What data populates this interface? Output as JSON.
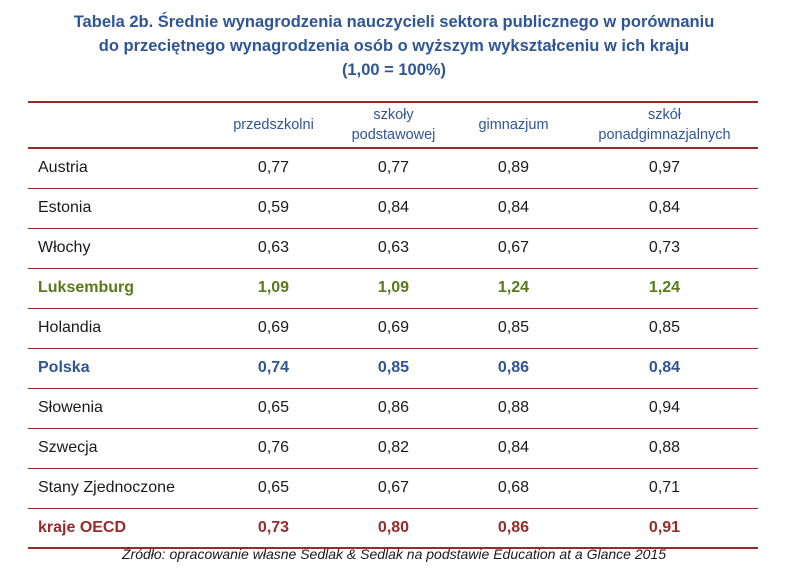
{
  "title": {
    "line1": "Tabela 2b. Średnie wynagrodzenia nauczycieli sektora publicznego w porównaniu",
    "line2": "do przeciętnego wynagrodzenia osób o wyższym wykształceniu w ich kraju",
    "line3": "(1,00 = 100%)"
  },
  "table": {
    "headers": [
      {
        "line1": "",
        "line2": ""
      },
      {
        "line1": "przedszkolni",
        "line2": ""
      },
      {
        "line1": "szkoły",
        "line2": "podstawowej"
      },
      {
        "line1": "gimnazjum",
        "line2": ""
      },
      {
        "line1": "szkół",
        "line2": "ponadgimnazjalnych"
      }
    ],
    "rows": [
      {
        "country": "Austria",
        "values": [
          "0,77",
          "0,77",
          "0,89",
          "0,97"
        ],
        "highlight": ""
      },
      {
        "country": "Estonia",
        "values": [
          "0,59",
          "0,84",
          "0,84",
          "0,84"
        ],
        "highlight": ""
      },
      {
        "country": "Włochy",
        "values": [
          "0,63",
          "0,63",
          "0,67",
          "0,73"
        ],
        "highlight": ""
      },
      {
        "country": "Luksemburg",
        "values": [
          "1,09",
          "1,09",
          "1,24",
          "1,24"
        ],
        "highlight": "green"
      },
      {
        "country": "Holandia",
        "values": [
          "0,69",
          "0,69",
          "0,85",
          "0,85"
        ],
        "highlight": ""
      },
      {
        "country": "Polska",
        "values": [
          "0,74",
          "0,85",
          "0,86",
          "0,84"
        ],
        "highlight": "blue"
      },
      {
        "country": "Słowenia",
        "values": [
          "0,65",
          "0,86",
          "0,88",
          "0,94"
        ],
        "highlight": ""
      },
      {
        "country": "Szwecja",
        "values": [
          "0,76",
          "0,82",
          "0,84",
          "0,88"
        ],
        "highlight": ""
      },
      {
        "country": "Stany Zjednoczone",
        "values": [
          "0,65",
          "0,67",
          "0,68",
          "0,71"
        ],
        "highlight": ""
      },
      {
        "country": "kraje OECD",
        "values": [
          "0,73",
          "0,80",
          "0,86",
          "0,91"
        ],
        "highlight": "red"
      }
    ]
  },
  "source": "Źródło: opracowanie własne Sedlak & Sedlak na podstawie Education at a Glance 2015",
  "colors": {
    "title": "#2f5597",
    "rule": "#9a2a2a",
    "highlight_green": "#5a7a1a",
    "highlight_blue": "#2f5597",
    "highlight_red": "#9a2a2a"
  }
}
